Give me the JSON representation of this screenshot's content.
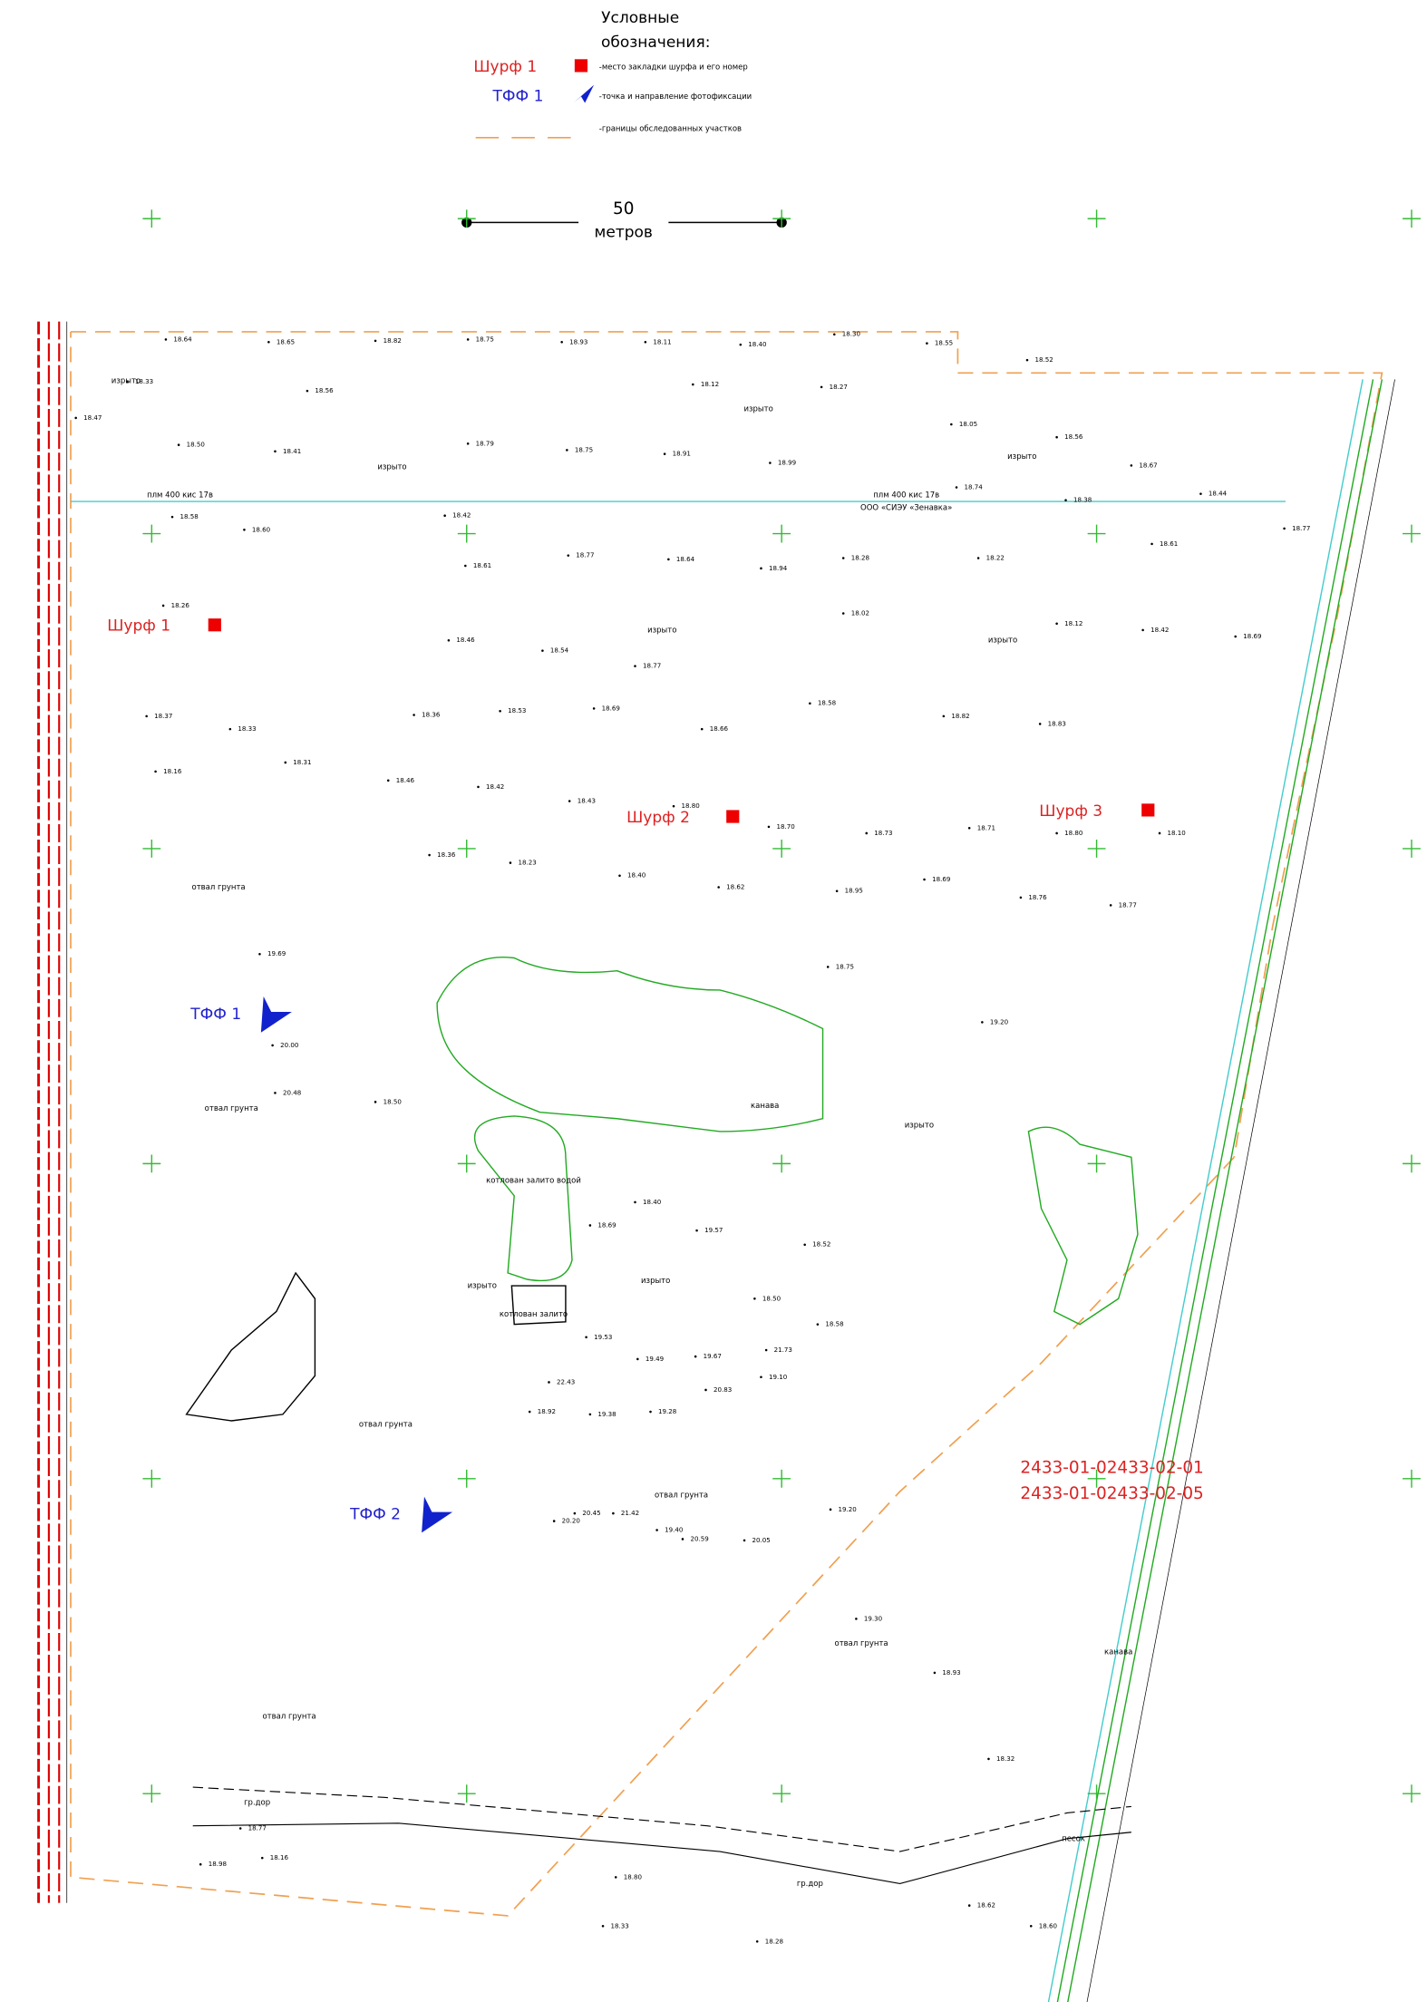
{
  "legend": {
    "title_lines": [
      "Условные",
      "обозначения:"
    ],
    "items": [
      {
        "label": "Шурф 1",
        "description": "-место закладки шурфа и его номер"
      },
      {
        "label": "ТФФ 1",
        "description": "-точка и направление фотофиксации"
      },
      {
        "description": "-границы обследованных участков"
      }
    ]
  },
  "scale": {
    "value": "50",
    "unit": "метров"
  },
  "pits": [
    "Шурф 1",
    "Шурф 2",
    "Шурф 3"
  ],
  "photo_points": [
    "ТФФ 1",
    "ТФФ 2"
  ],
  "pipeline": {
    "label_left": "плм 400 кис 17в",
    "label_right": "плм 400 кис 17в",
    "owner": "ООО «СИЭУ «Зенавка»"
  },
  "codes": [
    "2433-01-02433-02-01",
    "2433-01-02433-02-05"
  ],
  "notes": [
    "котлован залито водой",
    "котлован залито",
    "отвал грунта",
    "отвал грунта",
    "отвал грунта",
    "отвал грунта",
    "отвал грунта",
    "отвал грунта",
    "изрыто",
    "изрыто",
    "изрыто",
    "изрыто",
    "изрыто",
    "изрыто",
    "изрыто",
    "изрыто",
    "изрыто",
    "канава",
    "канава",
    "гр.дор",
    "гр.дор",
    "песок"
  ],
  "elevations": [
    "18.64",
    "18.65",
    "18.82",
    "18.75",
    "18.93",
    "18.11",
    "18.40",
    "18.30",
    "18.55",
    "18.52",
    "18.33",
    "18.56",
    "18.12",
    "18.27",
    "18.47",
    "18.50",
    "18.41",
    "18.79",
    "18.75",
    "18.91",
    "18.99",
    "18.05",
    "18.56",
    "18.67",
    "18.58",
    "18.42",
    "18.74",
    "18.38",
    "18.44",
    "18.60",
    "18.77",
    "18.61",
    "18.77",
    "18.64",
    "18.94",
    "18.28",
    "18.22",
    "18.61",
    "18.26",
    "18.46",
    "18.54",
    "18.77",
    "18.02",
    "18.12",
    "18.42",
    "18.69",
    "18.37",
    "18.33",
    "18.36",
    "18.53",
    "18.69",
    "18.66",
    "18.58",
    "18.82",
    "18.83",
    "18.16",
    "18.31",
    "18.46",
    "18.42",
    "18.43",
    "18.80",
    "18.70",
    "18.73",
    "18.71",
    "18.80",
    "18.10",
    "18.36",
    "18.23",
    "18.40",
    "18.62",
    "18.95",
    "18.69",
    "18.76",
    "18.77",
    "18.75",
    "19.69",
    "19.20",
    "20.00",
    "20.48",
    "18.50",
    "18.40",
    "18.69",
    "19.57",
    "18.52",
    "18.50",
    "18.58",
    "19.53",
    "19.49",
    "19.67",
    "21.73",
    "22.43",
    "20.83",
    "19.10",
    "18.92",
    "19.38",
    "19.28",
    "20.20",
    "20.45",
    "21.42",
    "19.40",
    "20.59",
    "20.05",
    "19.20",
    "19.30",
    "18.93",
    "18.32",
    "18.77",
    "18.98",
    "18.80",
    "18.16",
    "18.28",
    "18.62",
    "18.60",
    "18.33"
  ]
}
